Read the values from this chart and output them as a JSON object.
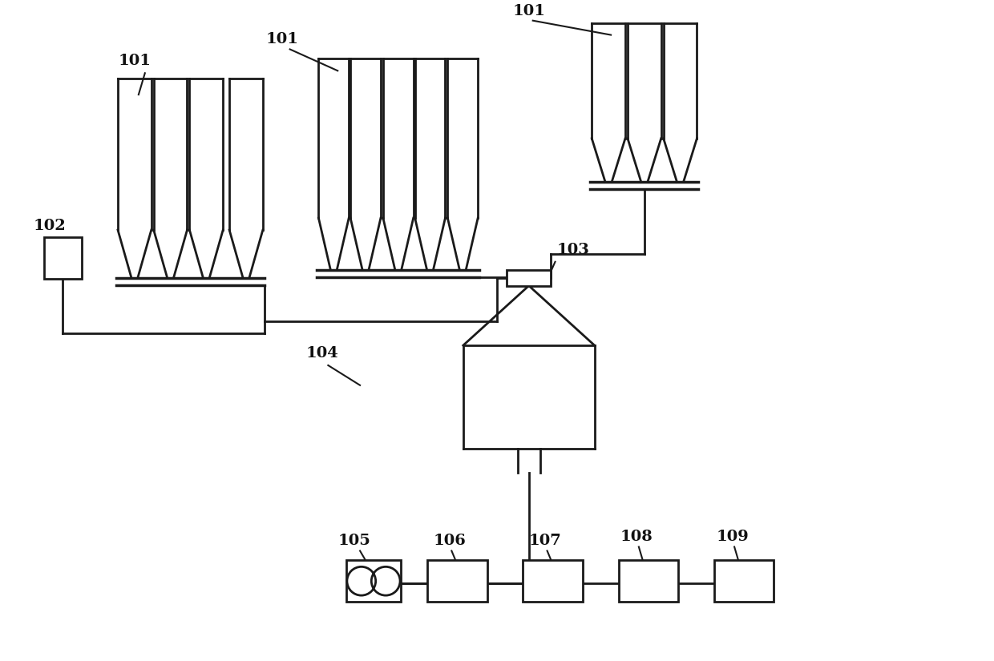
{
  "bg_color": "#ffffff",
  "line_color": "#1a1a1a",
  "lw": 2.0,
  "lw_thin": 1.5,
  "fig_w": 12.4,
  "fig_h": 8.25
}
